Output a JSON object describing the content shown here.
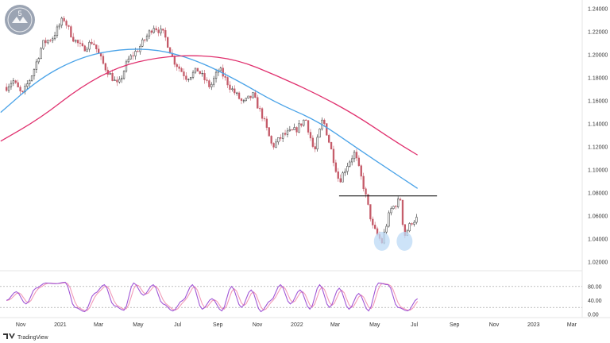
{
  "branding": {
    "watermark_letter": "5",
    "footer": "TradingView"
  },
  "chart_data": [
    {
      "type": "line",
      "kind": "candlestick-price-chart",
      "title": "",
      "xlabel": "",
      "ylabel": "",
      "ylim": [
        1.02,
        1.245
      ],
      "x_ticks": [
        "Nov",
        "2021",
        "Mar",
        "May",
        "Jul",
        "Sep",
        "Nov",
        "2022",
        "Mar",
        "May",
        "Jul",
        "Sep",
        "Nov",
        "2023",
        "Mar"
      ],
      "y_ticks": [
        "1.24000",
        "1.22000",
        "1.20000",
        "1.18000",
        "1.16000",
        "1.14000",
        "1.12000",
        "1.10000",
        "1.08000",
        "1.06000",
        "1.04000",
        "1.02000"
      ],
      "price_path": [
        {
          "x": "2020-10-10",
          "y": 1.172
        },
        {
          "x": "2020-10-20",
          "y": 1.178
        },
        {
          "x": "2020-11-03",
          "y": 1.165
        },
        {
          "x": "2020-11-20",
          "y": 1.185
        },
        {
          "x": "2020-12-05",
          "y": 1.21
        },
        {
          "x": "2020-12-20",
          "y": 1.215
        },
        {
          "x": "2021-01-06",
          "y": 1.232
        },
        {
          "x": "2021-01-20",
          "y": 1.215
        },
        {
          "x": "2021-02-05",
          "y": 1.205
        },
        {
          "x": "2021-02-20",
          "y": 1.212
        },
        {
          "x": "2021-03-10",
          "y": 1.19
        },
        {
          "x": "2021-03-31",
          "y": 1.173
        },
        {
          "x": "2021-04-15",
          "y": 1.195
        },
        {
          "x": "2021-05-01",
          "y": 1.205
        },
        {
          "x": "2021-05-25",
          "y": 1.225
        },
        {
          "x": "2021-06-10",
          "y": 1.218
        },
        {
          "x": "2021-06-25",
          "y": 1.195
        },
        {
          "x": "2021-07-15",
          "y": 1.18
        },
        {
          "x": "2021-08-01",
          "y": 1.187
        },
        {
          "x": "2021-08-20",
          "y": 1.172
        },
        {
          "x": "2021-09-03",
          "y": 1.188
        },
        {
          "x": "2021-09-20",
          "y": 1.172
        },
        {
          "x": "2021-10-10",
          "y": 1.158
        },
        {
          "x": "2021-10-25",
          "y": 1.165
        },
        {
          "x": "2021-11-10",
          "y": 1.145
        },
        {
          "x": "2021-11-24",
          "y": 1.12
        },
        {
          "x": "2021-12-10",
          "y": 1.13
        },
        {
          "x": "2021-12-31",
          "y": 1.135
        },
        {
          "x": "2022-01-14",
          "y": 1.145
        },
        {
          "x": "2022-01-28",
          "y": 1.115
        },
        {
          "x": "2022-02-10",
          "y": 1.145
        },
        {
          "x": "2022-02-24",
          "y": 1.115
        },
        {
          "x": "2022-03-07",
          "y": 1.09
        },
        {
          "x": "2022-03-20",
          "y": 1.105
        },
        {
          "x": "2022-03-31",
          "y": 1.115
        },
        {
          "x": "2022-04-14",
          "y": 1.085
        },
        {
          "x": "2022-04-28",
          "y": 1.05
        },
        {
          "x": "2022-05-12",
          "y": 1.037
        },
        {
          "x": "2022-05-25",
          "y": 1.065
        },
        {
          "x": "2022-06-10",
          "y": 1.075
        },
        {
          "x": "2022-06-15",
          "y": 1.042
        },
        {
          "x": "2022-06-27",
          "y": 1.055
        },
        {
          "x": "2022-07-06",
          "y": 1.058
        }
      ],
      "series": [
        {
          "color": "#4aa3e8",
          "points": [
            {
              "x": "2020-10-01",
              "y": 1.15
            },
            {
              "x": "2020-12-01",
              "y": 1.18
            },
            {
              "x": "2021-02-01",
              "y": 1.198
            },
            {
              "x": "2021-04-01",
              "y": 1.205
            },
            {
              "x": "2021-06-01",
              "y": 1.205
            },
            {
              "x": "2021-08-01",
              "y": 1.195
            },
            {
              "x": "2021-10-01",
              "y": 1.178
            },
            {
              "x": "2021-12-01",
              "y": 1.158
            },
            {
              "x": "2022-02-01",
              "y": 1.143
            },
            {
              "x": "2022-04-01",
              "y": 1.12
            },
            {
              "x": "2022-06-01",
              "y": 1.097
            },
            {
              "x": "2022-07-06",
              "y": 1.084
            }
          ]
        },
        {
          "color": "#e0306e",
          "points": [
            {
              "x": "2020-10-01",
              "y": 1.125
            },
            {
              "x": "2020-12-01",
              "y": 1.145
            },
            {
              "x": "2021-02-01",
              "y": 1.172
            },
            {
              "x": "2021-04-01",
              "y": 1.19
            },
            {
              "x": "2021-06-01",
              "y": 1.198
            },
            {
              "x": "2021-08-01",
              "y": 1.2
            },
            {
              "x": "2021-10-01",
              "y": 1.196
            },
            {
              "x": "2021-12-01",
              "y": 1.182
            },
            {
              "x": "2022-02-01",
              "y": 1.166
            },
            {
              "x": "2022-04-01",
              "y": 1.148
            },
            {
              "x": "2022-06-01",
              "y": 1.125
            },
            {
              "x": "2022-07-06",
              "y": 1.113
            }
          ]
        }
      ],
      "annotations": [
        {
          "type": "horizontal-line",
          "y": 1.0775,
          "x_start": "2022-03-07",
          "x_end": "2022-08-05",
          "color": "#000000"
        },
        {
          "type": "circle",
          "x": "2022-05-12",
          "y": 1.038,
          "color": "#bcd9f5"
        },
        {
          "type": "circle",
          "x": "2022-06-16",
          "y": 1.038,
          "color": "#bcd9f5"
        }
      ],
      "colors": {
        "up": "#2e2e2e",
        "down": "#c45a68"
      }
    },
    {
      "type": "line",
      "kind": "stochastic-oscillator",
      "title": "",
      "xlabel": "",
      "ylabel": "",
      "ylim": [
        -5,
        100
      ],
      "y_ticks": [
        "80.00",
        "40.00",
        "0.00"
      ],
      "levels": [
        80,
        20
      ],
      "k_values": [
        40,
        65,
        30,
        75,
        90,
        88,
        92,
        20,
        8,
        60,
        85,
        25,
        12,
        90,
        55,
        85,
        30,
        10,
        40,
        85,
        15,
        45,
        10,
        80,
        20,
        70,
        8,
        40,
        85,
        30,
        70,
        15,
        85,
        20,
        75,
        15,
        60,
        10,
        90,
        85,
        20,
        10,
        45
      ],
      "series": [
        {
          "color": "#a056d6",
          "role": "%K"
        },
        {
          "color": "#f29bb8",
          "role": "%D"
        }
      ]
    }
  ]
}
